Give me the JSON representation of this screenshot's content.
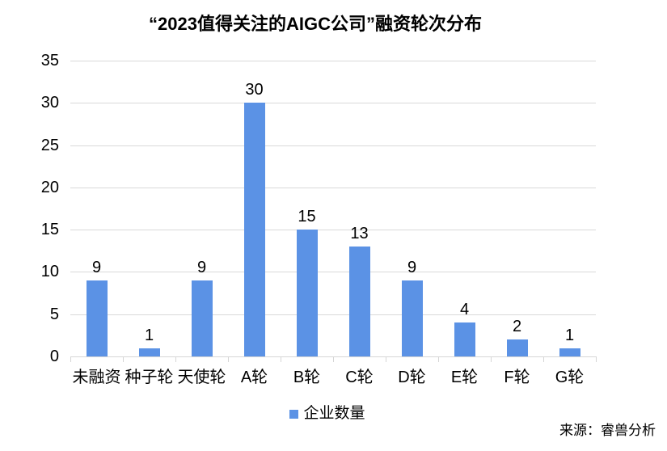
{
  "chart_data": {
    "type": "bar",
    "title": "“2023值得关注的AIGC公司”融资轮次分布",
    "categories": [
      "未融资",
      "种子轮",
      "天使轮",
      "A轮",
      "B轮",
      "C轮",
      "D轮",
      "E轮",
      "F轮",
      "G轮"
    ],
    "values": [
      9,
      1,
      9,
      30,
      15,
      13,
      9,
      4,
      2,
      1
    ],
    "series_name": "企业数量",
    "ylabel": "",
    "xlabel": "",
    "ylim": [
      0,
      35
    ],
    "ytick_step": 5,
    "grid": true,
    "legend_position": "bottom",
    "bar_color": "#5b92e5",
    "gridline_color": "#d9d9d9",
    "source": "来源：睿兽分析"
  }
}
